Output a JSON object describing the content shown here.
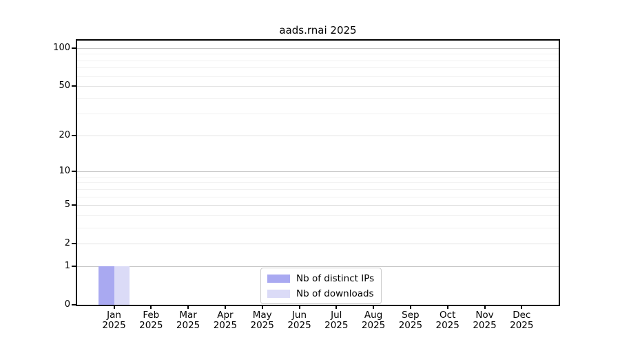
{
  "chart_data": {
    "type": "bar",
    "title": "aads.rnai 2025",
    "categories": [
      "Jan",
      "Feb",
      "Mar",
      "Apr",
      "May",
      "Jun",
      "Jul",
      "Aug",
      "Sep",
      "Oct",
      "Nov",
      "Dec"
    ],
    "x_tick_year": "2025",
    "series": [
      {
        "name": "Nb of distinct IPs",
        "color": "#a9a9f1",
        "values": [
          1,
          0,
          0,
          0,
          0,
          0,
          0,
          0,
          0,
          0,
          0,
          0
        ]
      },
      {
        "name": "Nb of downloads",
        "color": "#dbdbf7",
        "values": [
          1,
          0,
          0,
          0,
          0,
          0,
          0,
          0,
          0,
          0,
          0,
          0
        ]
      }
    ],
    "yscale": "log1p",
    "ylim": [
      0,
      115
    ],
    "y_major_ticks": [
      0,
      1,
      2,
      5,
      10,
      20,
      50,
      100
    ],
    "y_minor_ticks": [
      3,
      4,
      6,
      7,
      8,
      9,
      30,
      40,
      60,
      70,
      80,
      90
    ],
    "y_decade_ticks": [
      1,
      10,
      100
    ],
    "grid": true,
    "legend_position": "lower-center-inside"
  }
}
